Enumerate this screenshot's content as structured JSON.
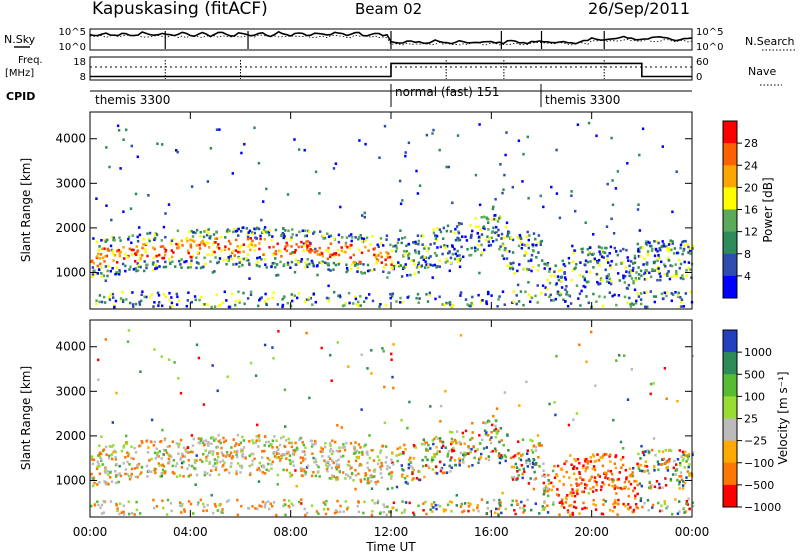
{
  "header": {
    "station": "Kapuskasing (fitACF)",
    "beam": "Beam 02",
    "date": "26/Sep/2011"
  },
  "left_labels": {
    "nsky": "N.Sky",
    "freq": "Freq.",
    "freq_unit": "[MHz]",
    "cpid": "CPID"
  },
  "right_labels": {
    "nsearch": "N.Search",
    "nave": "Nave"
  },
  "colors": {
    "power_scale": [
      "#0000ff",
      "#2e4bb0",
      "#2e8b57",
      "#5aaa5a",
      "#ffff00",
      "#ffa500",
      "#ff6000",
      "#ff0000"
    ],
    "velocity_scale": [
      "#2040c0",
      "#2e8b57",
      "#55bb33",
      "#99dd33",
      "#bbbbbb",
      "#ffaa00",
      "#ff7700",
      "#ff0000"
    ]
  },
  "chart_data": [
    {
      "type": "line",
      "panel": "noise",
      "y_left_ticks": [
        "10^5",
        "10^0"
      ],
      "y_right_ticks": [
        "10^5",
        "10^0"
      ]
    },
    {
      "type": "line",
      "panel": "frequency",
      "y_left_ticks": [
        "18",
        "8"
      ],
      "y_right_ticks": [
        "60",
        "0"
      ],
      "freq_levels": [
        {
          "start": 0,
          "end": 12,
          "level": 0.15
        },
        {
          "start": 12,
          "end": 22,
          "level": 0.72
        },
        {
          "start": 22,
          "end": 24,
          "level": 0.15
        }
      ]
    },
    {
      "type": "table",
      "panel": "cpid",
      "segments": [
        {
          "label": "themis 3300",
          "start": 0,
          "end": 12
        },
        {
          "label": "normal (fast) 151",
          "start": 12,
          "end": 18
        },
        {
          "label": "themis 3300",
          "start": 18,
          "end": 24
        }
      ]
    },
    {
      "type": "heatmap",
      "panel": "power",
      "ylabel": "Slant Range [km]",
      "ylim": [
        180,
        4600
      ],
      "y_ticks": [
        1000,
        2000,
        3000,
        4000
      ],
      "xlim": [
        0,
        24
      ],
      "colorbar_label": "Power [dB]",
      "colorbar_ticks": [
        "4",
        "8",
        "12",
        "16",
        "20",
        "24",
        "28"
      ]
    },
    {
      "type": "heatmap",
      "panel": "velocity",
      "ylabel": "Slant Range [km]",
      "ylim": [
        180,
        4600
      ],
      "y_ticks": [
        1000,
        2000,
        3000,
        4000
      ],
      "xlim": [
        0,
        24
      ],
      "xlabel": "Time UT",
      "x_ticks": [
        "00:00",
        "04:00",
        "08:00",
        "12:00",
        "16:00",
        "20:00",
        "00:00"
      ],
      "colorbar_label": "Velocity [m s⁻¹]",
      "colorbar_ticks": [
        "1000",
        "500",
        "100",
        "25",
        "−25",
        "−100",
        "−500",
        "−1000"
      ]
    }
  ]
}
